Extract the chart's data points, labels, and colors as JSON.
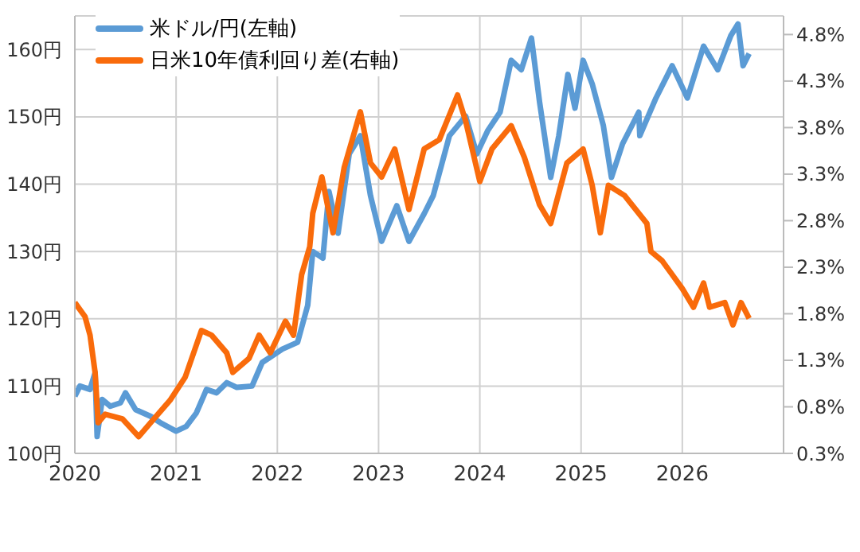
{
  "chart_data": {
    "type": "line",
    "xlim": [
      2020,
      2027
    ],
    "xticks": [
      2020,
      2021,
      2022,
      2023,
      2024,
      2025,
      2026
    ],
    "ylim": [
      100,
      165
    ],
    "yticks": [
      {
        "value": 100,
        "label": "100円"
      },
      {
        "value": 110,
        "label": "110円"
      },
      {
        "value": 120,
        "label": "120円"
      },
      {
        "value": 130,
        "label": "130円"
      },
      {
        "value": 140,
        "label": "140円"
      },
      {
        "value": 150,
        "label": "150円"
      },
      {
        "value": 160,
        "label": "160円"
      }
    ],
    "y2lim": [
      0.3,
      5.0
    ],
    "y2ticks": [
      {
        "value": 0.3,
        "label": "0.3%"
      },
      {
        "value": 0.8,
        "label": "0.8%"
      },
      {
        "value": 1.3,
        "label": "1.3%"
      },
      {
        "value": 1.8,
        "label": "1.8%"
      },
      {
        "value": 2.3,
        "label": "2.3%"
      },
      {
        "value": 2.8,
        "label": "2.8%"
      },
      {
        "value": 3.3,
        "label": "3.3%"
      },
      {
        "value": 3.8,
        "label": "3.8%"
      },
      {
        "value": 4.3,
        "label": "4.3%"
      },
      {
        "value": 4.8,
        "label": "4.8%"
      }
    ],
    "grid": true,
    "legend": "top left",
    "marker": "none",
    "line_style": "solid",
    "series": [
      {
        "name": "米ドル/円(左軸)",
        "color": "#5b9bd5",
        "x": [
          2020.0,
          2020.05,
          2020.15,
          2020.2,
          2020.22,
          2020.27,
          2020.35,
          2020.45,
          2020.5,
          2020.6,
          2020.75,
          2020.85,
          2021.0,
          2021.1,
          2021.2,
          2021.3,
          2021.4,
          2021.5,
          2021.6,
          2021.75,
          2021.85,
          2021.95,
          2022.05,
          2022.2,
          2022.3,
          2022.35,
          2022.45,
          2022.51,
          2022.6,
          2022.71,
          2022.82,
          2022.92,
          2023.03,
          2023.18,
          2023.3,
          2023.45,
          2023.54,
          2023.7,
          2023.86,
          2023.97,
          2024.08,
          2024.2,
          2024.31,
          2024.41,
          2024.51,
          2024.59,
          2024.7,
          2024.78,
          2024.87,
          2024.94,
          2025.02,
          2025.11,
          2025.22,
          2025.3,
          2025.41,
          2025.57,
          2025.58,
          2025.74,
          2025.9,
          2026.05,
          2026.21,
          2026.35,
          2026.48,
          2026.55,
          2026.6,
          2026.66
        ],
        "values": [
          108.5,
          110,
          109.5,
          112,
          102.5,
          108,
          107,
          107.5,
          109,
          106.5,
          105.5,
          104.5,
          103.3,
          104,
          106,
          109.5,
          109,
          110.5,
          109.8,
          110,
          113.5,
          114.5,
          115.5,
          116.5,
          122,
          130,
          129,
          138.9,
          132.7,
          144.5,
          147.2,
          138.3,
          131.5,
          136.8,
          131.5,
          135.6,
          138.3,
          147.2,
          150.1,
          144.5,
          148,
          150.7,
          158.4,
          157,
          161.7,
          152.2,
          141,
          147.2,
          156.3,
          151.3,
          158.4,
          154.9,
          148.7,
          141,
          146,
          150.7,
          147.2,
          152.8,
          157.6,
          152.8,
          160.5,
          157,
          162.1,
          163.8,
          157.6,
          159.4
        ]
      },
      {
        "name": "日米10年債利回り差(右軸)",
        "color": "#f96b0b",
        "axis": "y2",
        "x": [
          2020.0,
          2020.1,
          2020.15,
          2020.2,
          2020.23,
          2020.3,
          2020.47,
          2020.63,
          2020.78,
          2020.94,
          2021.09,
          2021.25,
          2021.35,
          2021.5,
          2021.56,
          2021.72,
          2021.82,
          2021.93,
          2022.08,
          2022.16,
          2022.24,
          2022.32,
          2022.35,
          2022.44,
          2022.55,
          2022.66,
          2022.82,
          2022.92,
          2023.03,
          2023.16,
          2023.3,
          2023.45,
          2023.6,
          2023.78,
          2023.86,
          2024.0,
          2024.12,
          2024.31,
          2024.44,
          2024.59,
          2024.7,
          2024.86,
          2025.02,
          2025.11,
          2025.19,
          2025.27,
          2025.43,
          2025.65,
          2025.69,
          2025.8,
          2025.9,
          2026.0,
          2026.11,
          2026.21,
          2026.27,
          2026.42,
          2026.5,
          2026.58,
          2026.66
        ],
        "values": [
          1.92,
          1.77,
          1.57,
          1.17,
          0.63,
          0.72,
          0.67,
          0.48,
          0.67,
          0.87,
          1.12,
          1.62,
          1.57,
          1.38,
          1.17,
          1.32,
          1.57,
          1.38,
          1.72,
          1.57,
          2.22,
          2.52,
          2.88,
          3.27,
          2.67,
          3.37,
          3.97,
          3.42,
          3.27,
          3.57,
          2.92,
          3.57,
          3.67,
          4.15,
          3.87,
          3.22,
          3.57,
          3.82,
          3.48,
          2.97,
          2.77,
          3.42,
          3.57,
          3.18,
          2.67,
          3.18,
          3.07,
          2.77,
          2.47,
          2.37,
          2.22,
          2.07,
          1.87,
          2.13,
          1.87,
          1.92,
          1.68,
          1.92,
          1.75
        ]
      }
    ]
  }
}
